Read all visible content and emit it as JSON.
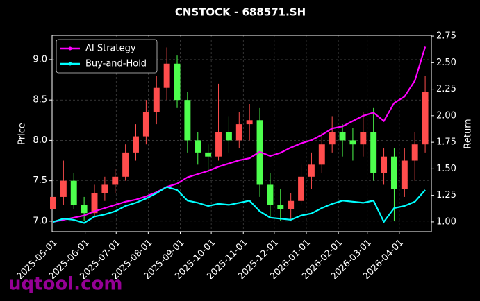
{
  "chart_data": {
    "type": "candlestick",
    "title": "CNSTOCK - 688571.SH",
    "ylabel": "Price",
    "y2label": "Return",
    "watermark": "uqtool.com",
    "legend": "upper left",
    "grid": true,
    "x": [
      "2025-05-01",
      "2025-05-11",
      "2025-05-21",
      "2025-05-31",
      "2025-06-10",
      "2025-06-20",
      "2025-06-30",
      "2025-07-10",
      "2025-07-20",
      "2025-07-30",
      "2025-08-09",
      "2025-08-19",
      "2025-08-29",
      "2025-09-08",
      "2025-09-18",
      "2025-09-28",
      "2025-10-08",
      "2025-10-18",
      "2025-10-28",
      "2025-11-07",
      "2025-11-17",
      "2025-11-27",
      "2025-12-07",
      "2025-12-17",
      "2025-12-27",
      "2026-01-06",
      "2026-01-16",
      "2026-01-26",
      "2026-02-05",
      "2026-02-15",
      "2026-02-25",
      "2026-03-07",
      "2026-03-17",
      "2026-03-27",
      "2026-04-06",
      "2026-04-16",
      "2026-04-26"
    ],
    "xlim": [
      "2025-04-30",
      "2026-05-02"
    ],
    "xticks": [
      "2025-05-01",
      "2025-06-01",
      "2025-07-01",
      "2025-08-01",
      "2025-09-01",
      "2025-10-01",
      "2025-11-01",
      "2025-12-01",
      "2026-01-01",
      "2026-02-01",
      "2026-03-01",
      "2026-04-01"
    ],
    "ylim": [
      6.87,
      9.3
    ],
    "yticks": [
      {
        "value": 7.0,
        "label": "7.0"
      },
      7.5,
      {
        "value": 8.0,
        "label": "8.0"
      },
      8.5,
      {
        "value": 9.0,
        "label": "9.0"
      }
    ],
    "y2lim": [
      0.908,
      2.757
    ],
    "y2ticks": [
      {
        "value": 1.0,
        "label": "1.00"
      },
      1.25,
      {
        "value": 1.5,
        "label": "1.50"
      },
      1.75,
      {
        "value": 2.0,
        "label": "2.00"
      },
      2.25,
      {
        "value": 2.5,
        "label": "2.50"
      },
      2.75
    ],
    "up_color": "#ff4d4d",
    "down_color": "#4dff4d",
    "open": [
      7.15,
      7.3,
      7.5,
      7.2,
      7.1,
      7.35,
      7.45,
      7.55,
      7.85,
      8.05,
      8.35,
      8.65,
      8.95,
      8.5,
      8.0,
      7.85,
      7.8,
      8.1,
      8.0,
      8.2,
      8.25,
      7.45,
      7.2,
      7.15,
      7.25,
      7.55,
      7.7,
      7.95,
      8.1,
      8.0,
      7.95,
      8.1,
      7.6,
      7.8,
      7.4,
      7.75,
      7.95
    ],
    "high": [
      7.35,
      7.75,
      7.6,
      7.3,
      7.45,
      7.55,
      7.65,
      7.95,
      8.2,
      8.5,
      8.8,
      9.15,
      9.05,
      8.6,
      8.1,
      7.95,
      8.7,
      8.3,
      8.35,
      8.45,
      8.4,
      7.6,
      7.4,
      7.35,
      7.7,
      7.85,
      8.1,
      8.3,
      8.2,
      8.15,
      8.35,
      8.4,
      7.9,
      7.9,
      7.9,
      8.1,
      8.8
    ],
    "low": [
      7.05,
      7.2,
      7.15,
      7.0,
      7.05,
      7.25,
      7.35,
      7.5,
      7.75,
      7.95,
      8.2,
      8.5,
      8.4,
      7.85,
      7.7,
      7.6,
      7.75,
      7.85,
      7.9,
      8.0,
      7.3,
      7.05,
      7.0,
      7.0,
      7.2,
      7.4,
      7.6,
      7.85,
      7.8,
      7.75,
      7.8,
      7.5,
      7.45,
      7.0,
      7.3,
      7.5,
      7.85
    ],
    "close": [
      7.3,
      7.5,
      7.2,
      7.1,
      7.35,
      7.45,
      7.55,
      7.85,
      8.05,
      8.35,
      8.65,
      8.95,
      8.5,
      8.0,
      7.85,
      7.8,
      8.1,
      8.0,
      8.2,
      8.25,
      7.45,
      7.2,
      7.15,
      7.25,
      7.55,
      7.7,
      7.95,
      8.1,
      8.0,
      7.95,
      8.1,
      7.6,
      7.8,
      7.4,
      7.75,
      7.95,
      8.6
    ],
    "series": [
      {
        "name": "AI Strategy",
        "color": "#ff00ff",
        "axis": "y2",
        "values": [
          1.0,
          1.02,
          1.04,
          1.06,
          1.1,
          1.13,
          1.16,
          1.19,
          1.21,
          1.24,
          1.28,
          1.33,
          1.36,
          1.42,
          1.45,
          1.48,
          1.52,
          1.55,
          1.58,
          1.6,
          1.66,
          1.62,
          1.65,
          1.7,
          1.74,
          1.77,
          1.82,
          1.88,
          1.9,
          1.95,
          2.0,
          2.03,
          1.95,
          2.12,
          2.18,
          2.33,
          2.65
        ]
      },
      {
        "name": "Buy-and-Hold",
        "color": "#00ffff",
        "axis": "y2",
        "values": [
          1.0,
          1.03,
          1.02,
          0.99,
          1.05,
          1.07,
          1.1,
          1.15,
          1.18,
          1.22,
          1.27,
          1.33,
          1.3,
          1.2,
          1.18,
          1.15,
          1.17,
          1.16,
          1.18,
          1.2,
          1.1,
          1.04,
          1.03,
          1.02,
          1.06,
          1.08,
          1.13,
          1.17,
          1.2,
          1.19,
          1.18,
          1.2,
          1.0,
          1.13,
          1.15,
          1.19,
          1.3
        ]
      }
    ]
  }
}
